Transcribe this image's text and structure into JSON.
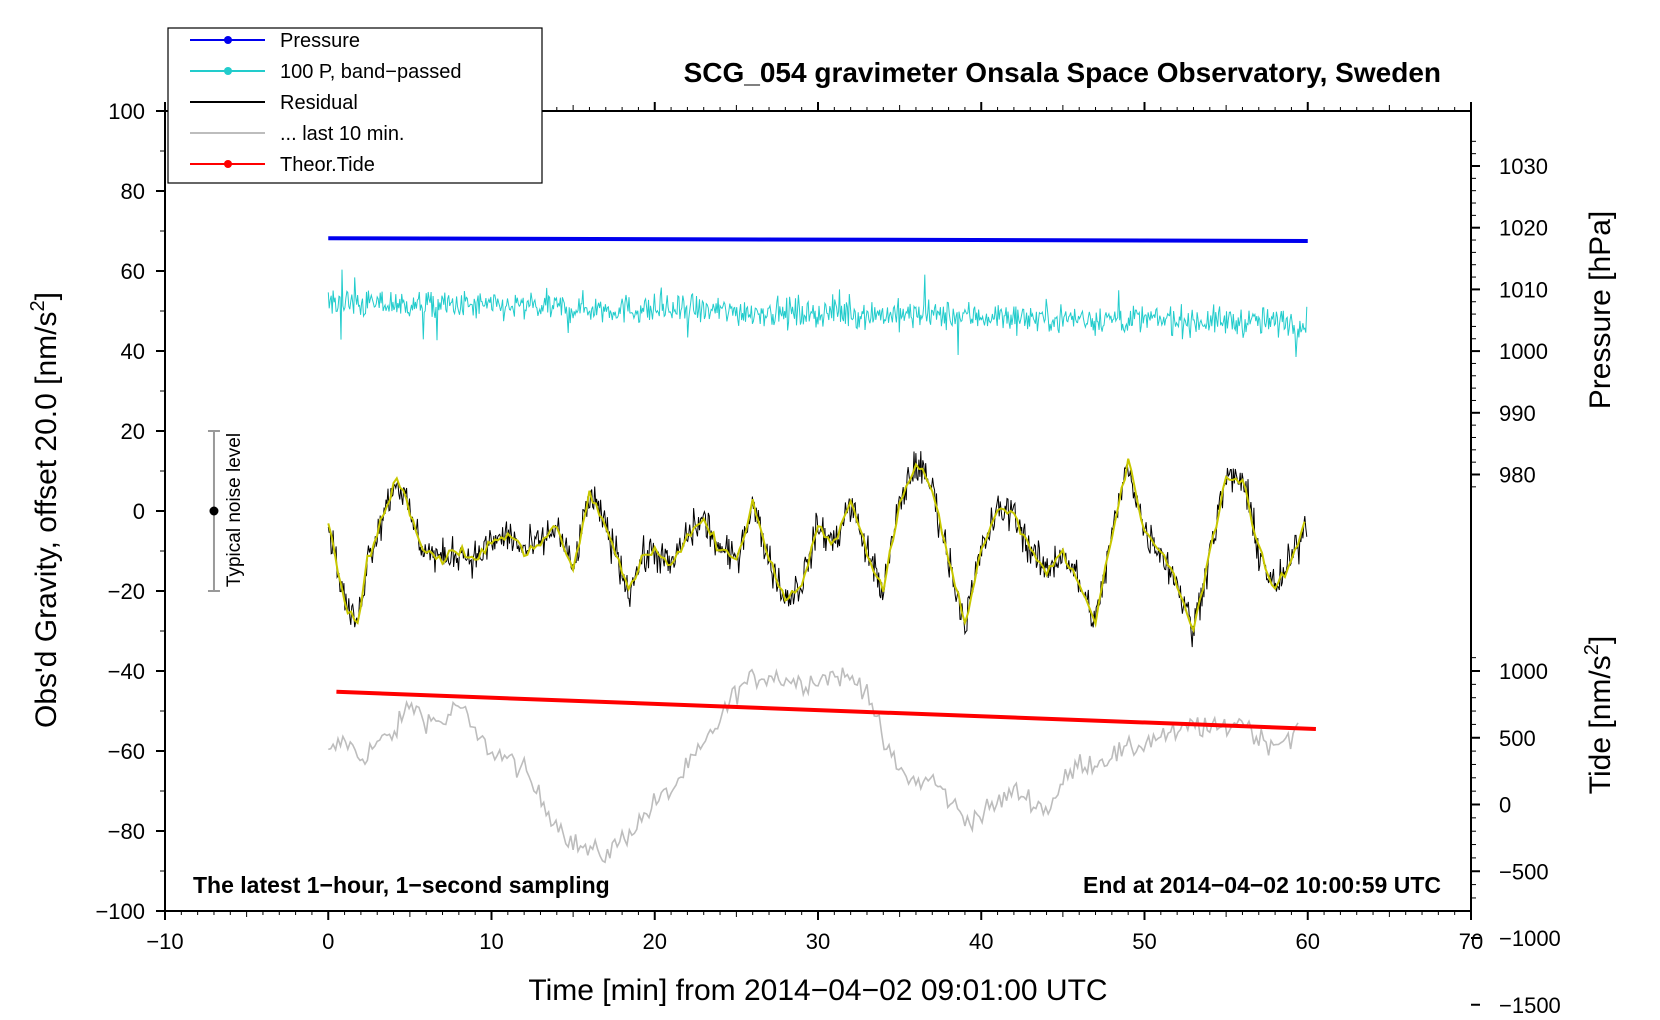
{
  "chart_data": {
    "type": "line",
    "title": "SCG_054 gravimeter Onsala Space Observatory, Sweden",
    "xlabel": "Time [min] from 2014−04−02 09:01:00 UTC",
    "ylabel_left": "Obs'd Gravity, offset 20.0",
    "ylabel_left_unit": "[nm/s",
    "ylabel_right_pressure": "Pressure [hPa]",
    "ylabel_right_tide": "Tide [nm/s",
    "unit_sup": "2",
    "unit_close": "]",
    "xlim": [
      -10,
      70
    ],
    "ylim": [
      -100,
      100
    ],
    "xticks": [
      -10,
      0,
      10,
      20,
      30,
      40,
      50,
      60,
      70
    ],
    "xtick_labels": [
      "−10",
      "0",
      "10",
      "20",
      "30",
      "40",
      "50",
      "60",
      "70"
    ],
    "yticks": [
      100,
      80,
      60,
      40,
      20,
      0,
      -20,
      -40,
      -60,
      -80,
      -100
    ],
    "ytick_labels": [
      "100",
      "80",
      "60",
      "40",
      "20",
      "0",
      "−20",
      "−40",
      "−60",
      "−80",
      "−100"
    ],
    "pressure_ticks": [
      1030,
      1020,
      1010,
      1000,
      990,
      980
    ],
    "pressure_tick_labels": [
      "1030",
      "1020",
      "1010",
      "1000",
      "990",
      "980"
    ],
    "tide_ticks": [
      1000,
      500,
      0,
      -500,
      -1000,
      -1500
    ],
    "tide_tick_labels": [
      "1000",
      "500",
      "0",
      "−500",
      "−1000",
      "−1500"
    ],
    "legend": {
      "position": "top-left",
      "entries": [
        {
          "label": "Pressure",
          "color": "#0000ee",
          "marker": true
        },
        {
          "label": "100 P, band−passed",
          "color": "#22cccc",
          "marker": true
        },
        {
          "label": "Residual",
          "color": "#000000",
          "marker": false
        },
        {
          "label": "... last 10 min.",
          "color": "#bdbdbd",
          "marker": false
        },
        {
          "label": "Theor.Tide",
          "color": "#ff0000",
          "marker": true
        }
      ]
    },
    "noise_bar": {
      "label": "Typical noise level",
      "x": -7,
      "center": 0,
      "low": -20,
      "high": 20
    },
    "note_left": "The latest 1−hour, 1−second sampling",
    "note_right": "End at 2014−04−02 10:00:59 UTC",
    "series": [
      {
        "name": "Pressure",
        "color": "#0000ee",
        "y_start": 68.2,
        "y_end": 67.5,
        "x_range": [
          0,
          60
        ]
      },
      {
        "name": "100 P, band-passed",
        "color": "#22cccc",
        "mean_start": 52,
        "mean_end": 47,
        "x_range": [
          0,
          60
        ]
      },
      {
        "name": "Residual",
        "color": "#000000",
        "x_range": [
          0,
          60
        ],
        "x": [
          0,
          0.6,
          1.2,
          1.8,
          2.4,
          3.0,
          3.6,
          4.2,
          4.8,
          5.4,
          6.0,
          7.0,
          8.0,
          9.0,
          10.0,
          11.0,
          12.0,
          13.0,
          14.0,
          15.0,
          16.0,
          16.8,
          17.6,
          18.4,
          19.2,
          20.0,
          21.0,
          22.0,
          23.0,
          24.0,
          25.0,
          26.0,
          27.0,
          28.0,
          29.0,
          30.0,
          31.0,
          32.0,
          33.0,
          34.0,
          35.0,
          36.0,
          37.0,
          38.0,
          39.0,
          40.0,
          41.0,
          42.0,
          43.0,
          44.0,
          45.0,
          46.0,
          47.0,
          48.0,
          49.0,
          50.0,
          51.0,
          52.0,
          53.0,
          54.0,
          55.0,
          56.0,
          57.0,
          58.0,
          59.0,
          60.0
        ],
        "values": [
          -2,
          -15,
          -25,
          -28,
          -12,
          -5,
          2,
          8,
          2,
          -6,
          -10,
          -12,
          -10,
          -12,
          -8,
          -6,
          -10,
          -8,
          -4,
          -15,
          4,
          -2,
          -10,
          -20,
          -12,
          -10,
          -14,
          -6,
          -2,
          -10,
          -12,
          2,
          -12,
          -22,
          -18,
          -4,
          -8,
          2,
          -10,
          -20,
          2,
          12,
          6,
          -12,
          -28,
          -10,
          0,
          0,
          -10,
          -15,
          -10,
          -18,
          -28,
          -6,
          12,
          -5,
          -10,
          -18,
          -30,
          -10,
          8,
          8,
          -10,
          -20,
          -12,
          -2
        ]
      },
      {
        "name": "Residual (smoothed)",
        "color": "#c8c800",
        "x_range": [
          0,
          60
        ]
      },
      {
        "name": "... last 10 min.",
        "color": "#bdbdbd",
        "x_range": [
          0,
          59.5
        ],
        "x": [
          0,
          1,
          2,
          3,
          4,
          5,
          6,
          7,
          8,
          9,
          10,
          11,
          12,
          13,
          14,
          15,
          16,
          17,
          18,
          19,
          20,
          21,
          22,
          23,
          24,
          25,
          26,
          27,
          28,
          29,
          30,
          31,
          32,
          33,
          34,
          35,
          36,
          37,
          38,
          39,
          40,
          41,
          42,
          43,
          44,
          45,
          46,
          47,
          48,
          49,
          50,
          51,
          52,
          53,
          54,
          55,
          56,
          57,
          58,
          59,
          59.5
        ],
        "values": [
          -61,
          -57,
          -62,
          -58,
          -56,
          -48,
          -52,
          -53,
          -48,
          -56,
          -60,
          -62,
          -65,
          -72,
          -78,
          -83,
          -85,
          -86,
          -82,
          -78,
          -73,
          -70,
          -64,
          -59,
          -52,
          -45,
          -42,
          -41,
          -42,
          -43,
          -42,
          -41,
          -42,
          -44,
          -58,
          -65,
          -68,
          -67,
          -72,
          -77,
          -76,
          -73,
          -70,
          -72,
          -75,
          -68,
          -63,
          -63,
          -61,
          -60,
          -58,
          -56,
          -56,
          -53,
          -55,
          -54,
          -52,
          -57,
          -58,
          -56,
          -54
        ]
      },
      {
        "name": "Theor.Tide",
        "color": "#ff0000",
        "y_start": -45.2,
        "y_end": -54.5,
        "x_range": [
          0.5,
          60.5
        ]
      }
    ]
  }
}
